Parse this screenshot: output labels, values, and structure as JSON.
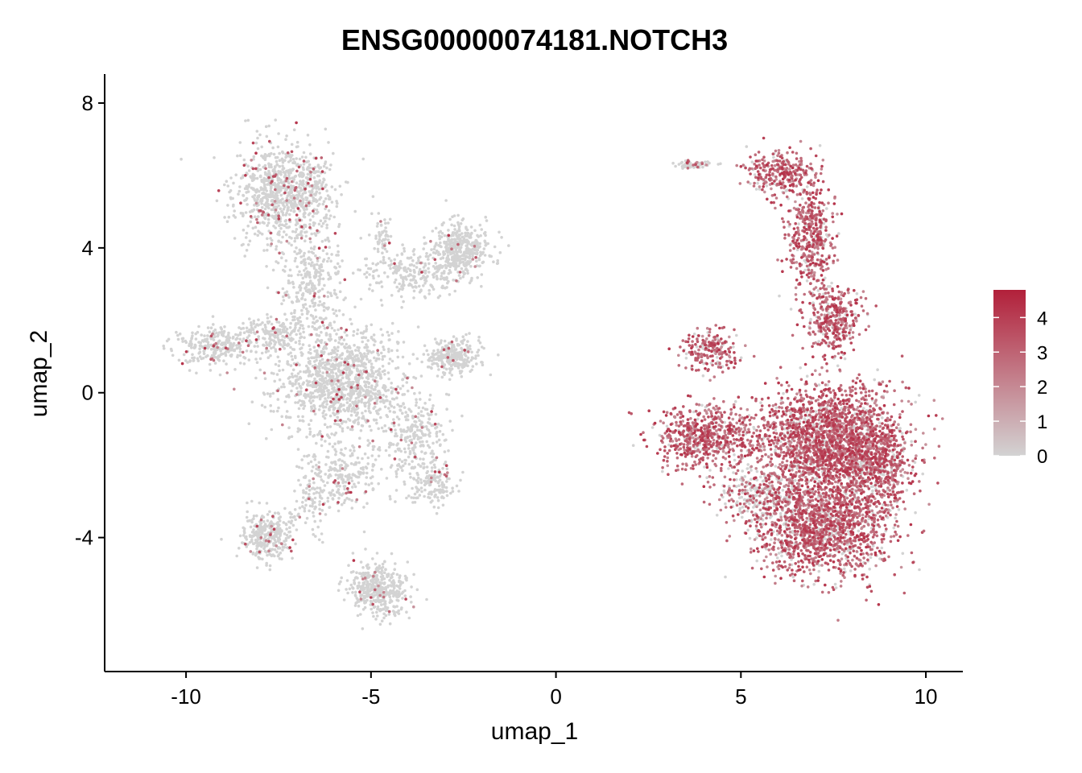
{
  "chart_data": {
    "type": "scatter",
    "title": "ENSG00000074181.NOTCH3",
    "xlabel": "umap_1",
    "ylabel": "umap_2",
    "xlim": [
      -12.2,
      11.0
    ],
    "ylim": [
      -7.7,
      8.8
    ],
    "xticks": [
      -10,
      -5,
      0,
      5,
      10
    ],
    "xtick_labels": [
      "-10",
      "-5",
      "0",
      "5",
      "10"
    ],
    "yticks": [
      -4,
      0,
      4,
      8
    ],
    "ytick_labels": [
      "-4",
      "0",
      "4",
      "8"
    ],
    "grid": false,
    "legend": {
      "placement": "right",
      "type": "colorbar",
      "min": 0,
      "max": 4.8,
      "ticks": [
        0,
        1,
        2,
        3,
        4
      ],
      "tick_labels": [
        "0",
        "1",
        "2",
        "3",
        "4"
      ],
      "low_color": "#d3d3d3",
      "high_color": "#b2203a"
    },
    "clusters": [
      {
        "cx": -7.3,
        "cy": 5.5,
        "sx": 0.9,
        "sy": 0.9,
        "n": 950,
        "expr": 0.07
      },
      {
        "cx": -2.6,
        "cy": 3.9,
        "sx": 0.55,
        "sy": 0.5,
        "n": 420,
        "expr": 0.02
      },
      {
        "cx": -3.9,
        "cy": 3.3,
        "sx": 0.9,
        "sy": 0.45,
        "n": 250,
        "expr": 0.03
      },
      {
        "cx": -6.6,
        "cy": 3.0,
        "sx": 0.6,
        "sy": 1.0,
        "n": 300,
        "expr": 0.04
      },
      {
        "cx": -5.8,
        "cy": 0.3,
        "sx": 1.1,
        "sy": 0.9,
        "n": 1200,
        "expr": 0.05
      },
      {
        "cx": -9.2,
        "cy": 1.3,
        "sx": 0.7,
        "sy": 0.35,
        "n": 250,
        "expr": 0.08
      },
      {
        "cx": -7.6,
        "cy": 1.6,
        "sx": 0.8,
        "sy": 0.3,
        "n": 200,
        "expr": 0.05
      },
      {
        "cx": -2.8,
        "cy": 1.0,
        "sx": 0.5,
        "sy": 0.35,
        "n": 280,
        "expr": 0.03
      },
      {
        "cx": -3.8,
        "cy": -1.2,
        "sx": 0.6,
        "sy": 0.7,
        "n": 250,
        "expr": 0.05
      },
      {
        "cx": -3.4,
        "cy": -2.5,
        "sx": 0.4,
        "sy": 0.4,
        "n": 160,
        "expr": 0.04
      },
      {
        "cx": -5.7,
        "cy": -2.3,
        "sx": 0.7,
        "sy": 0.6,
        "n": 220,
        "expr": 0.06
      },
      {
        "cx": -7.8,
        "cy": -3.9,
        "sx": 0.5,
        "sy": 0.45,
        "n": 320,
        "expr": 0.05
      },
      {
        "cx": -4.8,
        "cy": -5.4,
        "sx": 0.55,
        "sy": 0.5,
        "n": 420,
        "expr": 0.03
      },
      {
        "cx": -6.6,
        "cy": -2.9,
        "sx": 0.3,
        "sy": 0.7,
        "n": 90,
        "expr": 0.05
      },
      {
        "cx": -4.7,
        "cy": 4.3,
        "sx": 0.15,
        "sy": 0.35,
        "n": 50,
        "expr": 0.05
      },
      {
        "cx": 6.0,
        "cy": 6.1,
        "sx": 0.6,
        "sy": 0.4,
        "n": 280,
        "expr": 0.85
      },
      {
        "cx": 6.9,
        "cy": 4.3,
        "sx": 0.45,
        "sy": 1.1,
        "n": 450,
        "expr": 0.85
      },
      {
        "cx": 7.5,
        "cy": 2.0,
        "sx": 0.5,
        "sy": 0.7,
        "n": 350,
        "expr": 0.85
      },
      {
        "cx": 4.2,
        "cy": 1.2,
        "sx": 0.5,
        "sy": 0.4,
        "n": 200,
        "expr": 0.8
      },
      {
        "cx": 4.0,
        "cy": -1.2,
        "sx": 0.9,
        "sy": 0.6,
        "n": 600,
        "expr": 0.9
      },
      {
        "cx": 7.3,
        "cy": -1.3,
        "sx": 1.3,
        "sy": 1.0,
        "n": 2000,
        "expr": 0.85
      },
      {
        "cx": 7.2,
        "cy": -3.7,
        "sx": 1.2,
        "sy": 0.9,
        "n": 1500,
        "expr": 0.82
      },
      {
        "cx": 5.5,
        "cy": -2.8,
        "sx": 0.7,
        "sy": 0.5,
        "n": 300,
        "expr": 0.5
      },
      {
        "cx": 3.7,
        "cy": 6.3,
        "sx": 0.4,
        "sy": 0.08,
        "n": 60,
        "expr": 0.25
      },
      {
        "cx": 8.7,
        "cy": -2.0,
        "sx": 0.6,
        "sy": 0.9,
        "n": 500,
        "expr": 0.85
      }
    ]
  }
}
